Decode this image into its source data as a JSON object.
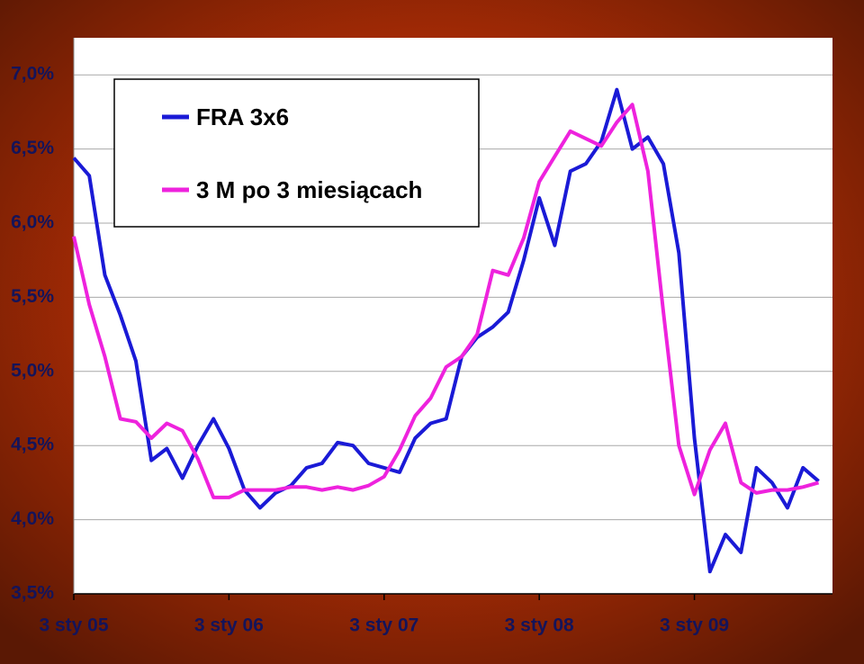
{
  "chart_data": {
    "type": "line",
    "x": [
      2005.0,
      2005.1,
      2005.2,
      2005.3,
      2005.4,
      2005.5,
      2005.6,
      2005.7,
      2005.8,
      2005.9,
      2006.0,
      2006.1,
      2006.2,
      2006.3,
      2006.4,
      2006.5,
      2006.6,
      2006.7,
      2006.8,
      2006.9,
      2007.0,
      2007.1,
      2007.2,
      2007.3,
      2007.4,
      2007.5,
      2007.6,
      2007.7,
      2007.8,
      2007.9,
      2008.0,
      2008.1,
      2008.2,
      2008.3,
      2008.4,
      2008.5,
      2008.6,
      2008.7,
      2008.8,
      2008.9,
      2009.0,
      2009.1,
      2009.2,
      2009.3,
      2009.4,
      2009.5,
      2009.6,
      2009.7,
      2009.8
    ],
    "series": [
      {
        "name": "FRA 3x6",
        "color": "#1a1ad6",
        "values": [
          6.44,
          6.32,
          5.65,
          5.38,
          5.07,
          4.4,
          4.48,
          4.28,
          4.5,
          4.68,
          4.48,
          4.2,
          4.08,
          4.18,
          4.23,
          4.35,
          4.38,
          4.52,
          4.5,
          4.38,
          4.35,
          4.32,
          4.55,
          4.65,
          4.68,
          5.1,
          5.23,
          5.3,
          5.4,
          5.75,
          6.17,
          5.85,
          6.35,
          6.4,
          6.55,
          6.9,
          6.5,
          6.58,
          6.4,
          5.8,
          4.55,
          3.65,
          3.9,
          3.78,
          4.35,
          4.25,
          4.08,
          4.35,
          4.26
        ]
      },
      {
        "name": "3 M po 3 miesiącach",
        "color": "#ee22dd",
        "values": [
          5.91,
          5.45,
          5.1,
          4.68,
          4.66,
          4.55,
          4.65,
          4.6,
          4.41,
          4.15,
          4.15,
          4.2,
          4.2,
          4.2,
          4.22,
          4.22,
          4.2,
          4.22,
          4.2,
          4.23,
          4.29,
          4.47,
          4.7,
          4.82,
          5.03,
          5.1,
          5.25,
          5.68,
          5.65,
          5.9,
          6.28,
          6.45,
          6.62,
          6.57,
          6.52,
          6.68,
          6.8,
          6.35,
          5.4,
          4.5,
          4.17,
          4.47,
          4.65,
          4.25,
          4.18,
          4.2,
          4.2,
          4.22,
          4.25
        ]
      }
    ],
    "xlim": [
      2005.0,
      2009.89
    ],
    "xticks": [
      {
        "value": 2005,
        "label": "3 sty 05"
      },
      {
        "value": 2006,
        "label": "3 sty 06"
      },
      {
        "value": 2007,
        "label": "3 sty 07"
      },
      {
        "value": 2008,
        "label": "3 sty 08"
      },
      {
        "value": 2009,
        "label": "3 sty 09"
      }
    ],
    "ylim": [
      3.5,
      7.25
    ],
    "yticks": [
      {
        "value": 3.5,
        "label": "3,5%"
      },
      {
        "value": 4,
        "label": "4,0%"
      },
      {
        "value": 4.5,
        "label": "4,5%"
      },
      {
        "value": 5,
        "label": "5,0%"
      },
      {
        "value": 5.5,
        "label": "5,5%"
      },
      {
        "value": 6,
        "label": "6,0%"
      },
      {
        "value": 6.5,
        "label": "6,5%"
      },
      {
        "value": 7,
        "label": "7,0%"
      }
    ],
    "grid": true
  }
}
